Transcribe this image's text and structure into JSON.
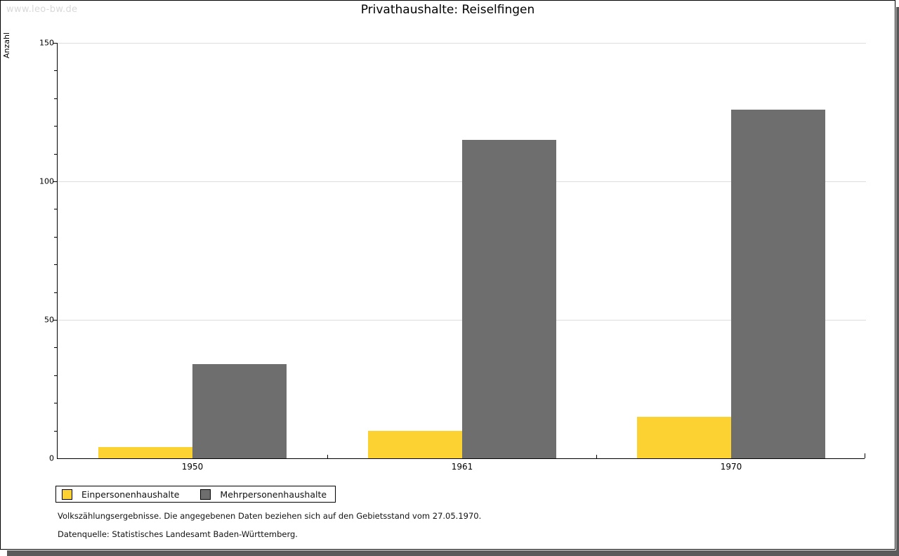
{
  "watermark": "www.leo-bw.de",
  "chart_data": {
    "type": "bar",
    "title": "Privathaushalte: Reiselfingen",
    "xlabel": "",
    "ylabel": "Anzahl",
    "categories": [
      "1950",
      "1961",
      "1970"
    ],
    "series": [
      {
        "name": "Einpersonenhaushalte",
        "color": "#FCD232",
        "values": [
          4,
          10,
          15
        ]
      },
      {
        "name": "Mehrpersonenhaushalte",
        "color": "#6E6E6E",
        "values": [
          34,
          115,
          126
        ]
      }
    ],
    "ylim": [
      0,
      150
    ],
    "yticks": [
      0,
      50,
      100,
      150
    ],
    "minor_tick_step": 10,
    "grid": true,
    "legend_position": "bottom-left"
  },
  "footnotes": {
    "line1": "Volkszählungsergebnisse. Die angegebenen Daten beziehen sich auf den Gebietsstand vom 27.05.1970.",
    "line2": "Datenquelle: Statistisches Landesamt Baden-Württemberg."
  },
  "colors": {
    "grid": "#dddddd",
    "axis": "#000000",
    "watermark": "#d9d9d9",
    "shadow": "#5a5a5a"
  }
}
